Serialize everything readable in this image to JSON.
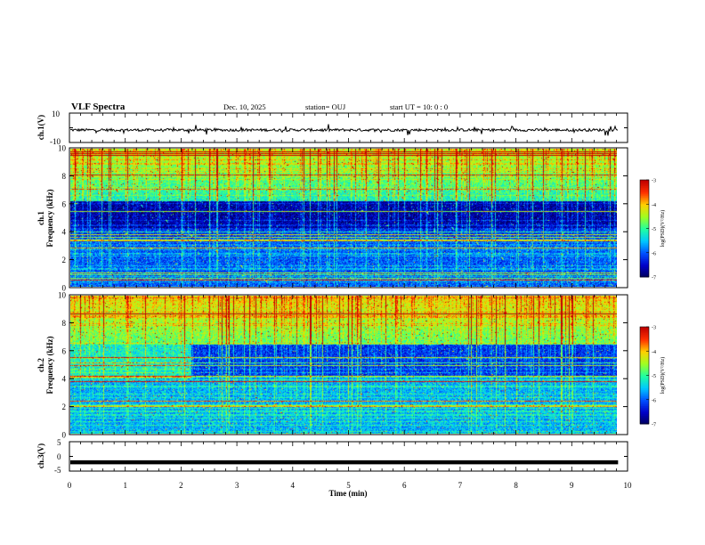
{
  "header": {
    "title": "VLF Spectra",
    "date": "Dec. 10, 2025",
    "station": "station= OUJ",
    "start": "start  UT =   10: 0  : 0"
  },
  "chart_data": [
    {
      "type": "line",
      "name": "ch1-waveform",
      "ylabel": "ch.1(V)",
      "ylim": [
        -10,
        10
      ],
      "y_ticks": [
        "10",
        "-10"
      ],
      "description_level": -1.5,
      "xlim": [
        0,
        10
      ]
    },
    {
      "type": "heatmap",
      "name": "ch1-spectrogram",
      "ylabel_line1": "ch.1",
      "ylabel_line2": "Frequency (kHz)",
      "ylim": [
        0,
        10
      ],
      "y_ticks": [
        "0",
        "2",
        "4",
        "6",
        "8",
        "10"
      ],
      "data_end_min": 9.83,
      "colorbar": {
        "label": "log(PSD)(V²/Hz)",
        "range": [
          -7,
          -3
        ],
        "ticks": [
          "-3",
          "-4",
          "-5",
          "-6",
          "-7"
        ]
      }
    },
    {
      "type": "heatmap",
      "name": "ch2-spectrogram",
      "ylabel_line1": "ch.2",
      "ylabel_line2": "Frequency (kHz)",
      "ylim": [
        0,
        10
      ],
      "y_ticks": [
        "0",
        "2",
        "4",
        "6",
        "8",
        "10"
      ],
      "data_end_min": 9.83,
      "colorbar": {
        "label": "log(PSD)(V²/Hz)",
        "range": [
          -7,
          -3
        ],
        "ticks": [
          "-3",
          "-4",
          "-5",
          "-6",
          "-7"
        ]
      }
    },
    {
      "type": "line",
      "name": "ch3-level",
      "ylabel": "ch.3(V)",
      "ylim": [
        -5,
        5
      ],
      "y_ticks": [
        "5",
        "0",
        "-5"
      ],
      "constant_value": -2
    }
  ],
  "x_axis": {
    "label": "Time (min)",
    "xlim": [
      0,
      10
    ],
    "ticks": [
      "0",
      "1",
      "2",
      "3",
      "4",
      "5",
      "6",
      "7",
      "8",
      "9",
      "10"
    ]
  },
  "colors": {
    "palette": [
      "#00005a",
      "#0000c8",
      "#0050ff",
      "#00c8ff",
      "#20ffa0",
      "#a0ff20",
      "#ffd000",
      "#ff3000",
      "#c00000"
    ]
  }
}
